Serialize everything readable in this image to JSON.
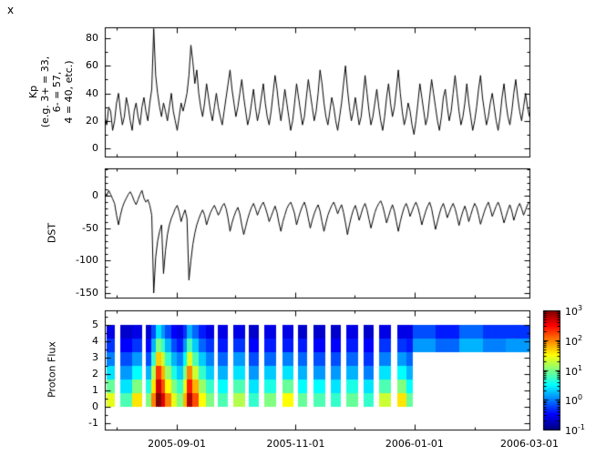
{
  "figure": {
    "corner_label": "x"
  },
  "xaxis": {
    "tick_labels": [
      "2005-09-01",
      "2005-11-01",
      "2006-01-01",
      "2006-03-01"
    ],
    "tick_days": [
      37,
      98,
      159,
      218
    ],
    "minor_tick_days": [
      6,
      67,
      128,
      190
    ],
    "total_days": 218
  },
  "colorbar": {
    "tick_base": "10",
    "tick_exponents": [
      "3",
      "2",
      "1",
      "0",
      "-1"
    ],
    "clim_log": [
      -1,
      3
    ]
  },
  "chart_data": [
    {
      "type": "line",
      "title": "",
      "ylabel_lines": [
        "Kp",
        "(e.g. 3+ = 33,",
        "6- = 57,",
        "4 = 40, etc.)"
      ],
      "yticks": [
        0,
        20,
        40,
        60,
        80
      ],
      "yticks_minor": [
        10,
        30,
        50,
        70
      ],
      "ylim": [
        -6,
        88
      ],
      "values": [
        23,
        17,
        30,
        27,
        13,
        20,
        33,
        40,
        27,
        17,
        23,
        37,
        30,
        20,
        13,
        27,
        33,
        23,
        17,
        30,
        37,
        27,
        20,
        33,
        43,
        87,
        53,
        40,
        30,
        23,
        33,
        27,
        20,
        30,
        40,
        27,
        20,
        13,
        23,
        33,
        27,
        33,
        40,
        53,
        75,
        63,
        47,
        57,
        40,
        30,
        23,
        33,
        47,
        37,
        27,
        20,
        30,
        40,
        30,
        23,
        17,
        27,
        37,
        47,
        57,
        43,
        33,
        23,
        30,
        40,
        50,
        37,
        27,
        17,
        23,
        33,
        43,
        30,
        20,
        27,
        37,
        47,
        33,
        23,
        17,
        27,
        40,
        53,
        43,
        30,
        20,
        30,
        43,
        33,
        23,
        13,
        20,
        33,
        47,
        37,
        27,
        17,
        23,
        37,
        50,
        40,
        30,
        20,
        27,
        40,
        57,
        47,
        33,
        23,
        17,
        27,
        37,
        30,
        20,
        13,
        23,
        33,
        47,
        60,
        43,
        30,
        20,
        27,
        37,
        27,
        17,
        23,
        37,
        53,
        40,
        27,
        17,
        23,
        33,
        43,
        30,
        20,
        13,
        23,
        37,
        47,
        33,
        23,
        30,
        43,
        57,
        40,
        27,
        17,
        23,
        33,
        27,
        17,
        10,
        20,
        33,
        47,
        37,
        27,
        17,
        23,
        37,
        50,
        40,
        30,
        20,
        13,
        23,
        37,
        43,
        30,
        20,
        27,
        40,
        53,
        40,
        27,
        17,
        23,
        33,
        47,
        33,
        23,
        13,
        20,
        30,
        43,
        53,
        37,
        27,
        17,
        23,
        33,
        40,
        30,
        20,
        13,
        23,
        37,
        47,
        33,
        23,
        17,
        27,
        40,
        50,
        37,
        27,
        20,
        30,
        40,
        30,
        23
      ]
    },
    {
      "type": "line",
      "title": "",
      "ylabel": "DST",
      "yticks": [
        0,
        -50,
        -100,
        -150
      ],
      "yticks_minor": [
        40,
        30,
        20,
        10,
        -10,
        -20,
        -30,
        -40,
        -60,
        -70,
        -80,
        -90,
        -110,
        -120,
        -130,
        -140
      ],
      "ylim": [
        -157,
        42
      ],
      "values": [
        5,
        0,
        8,
        2,
        -5,
        -12,
        -30,
        -45,
        -30,
        -18,
        -10,
        -4,
        2,
        6,
        0,
        -8,
        -14,
        -6,
        2,
        8,
        -4,
        -10,
        -6,
        -15,
        -30,
        -150,
        -95,
        -70,
        -55,
        -45,
        -120,
        -85,
        -60,
        -45,
        -35,
        -28,
        -20,
        -15,
        -25,
        -40,
        -30,
        -22,
        -35,
        -130,
        -100,
        -75,
        -58,
        -45,
        -36,
        -28,
        -22,
        -30,
        -45,
        -35,
        -26,
        -20,
        -15,
        -22,
        -30,
        -24,
        -16,
        -12,
        -20,
        -35,
        -55,
        -42,
        -32,
        -24,
        -18,
        -28,
        -45,
        -60,
        -48,
        -36,
        -26,
        -18,
        -12,
        -20,
        -30,
        -22,
        -15,
        -10,
        -18,
        -28,
        -40,
        -32,
        -24,
        -16,
        -26,
        -42,
        -55,
        -40,
        -30,
        -20,
        -14,
        -10,
        -18,
        -28,
        -45,
        -34,
        -24,
        -16,
        -10,
        -20,
        -35,
        -50,
        -38,
        -28,
        -20,
        -14,
        -24,
        -40,
        -55,
        -42,
        -30,
        -22,
        -15,
        -10,
        -18,
        -28,
        -20,
        -14,
        -26,
        -42,
        -60,
        -45,
        -32,
        -22,
        -15,
        -25,
        -38,
        -28,
        -18,
        -12,
        -22,
        -36,
        -50,
        -38,
        -26,
        -18,
        -12,
        -8,
        -16,
        -28,
        -42,
        -32,
        -22,
        -14,
        -24,
        -40,
        -55,
        -40,
        -28,
        -18,
        -12,
        -20,
        -32,
        -24,
        -16,
        -10,
        -18,
        -30,
        -45,
        -34,
        -24,
        -16,
        -10,
        -20,
        -36,
        -52,
        -40,
        -28,
        -18,
        -12,
        -22,
        -34,
        -26,
        -18,
        -12,
        -20,
        -32,
        -46,
        -34,
        -24,
        -16,
        -26,
        -40,
        -30,
        -20,
        -12,
        -18,
        -30,
        -44,
        -34,
        -24,
        -16,
        -10,
        -20,
        -32,
        -24,
        -16,
        -10,
        -18,
        -30,
        -42,
        -32,
        -22,
        -14,
        -24,
        -38,
        -28,
        -18,
        -12,
        -20,
        -30,
        -22,
        -14,
        -10
      ]
    },
    {
      "type": "heatmap",
      "title": "",
      "ylabel": "Proton Flux",
      "yticks": [
        -1,
        0,
        1,
        2,
        3,
        4,
        5
      ],
      "yticks_minor": [
        -0.5,
        0.5,
        1.5,
        2.5,
        3.5,
        4.5,
        5.5
      ],
      "ylim": [
        -1.4,
        5.9
      ],
      "value_scale": "log10_flux",
      "clim": [
        -1,
        3
      ],
      "rows": 6,
      "row_span": [
        0,
        5
      ],
      "segments": [
        {
          "d0": 1,
          "d1": 5,
          "v": [
            1.4,
            0.9,
            0.4,
            0.0,
            -0.3,
            -0.6
          ]
        },
        {
          "d0": 8,
          "d1": 14,
          "v": [
            0.8,
            0.4,
            0.1,
            -0.2,
            -0.5,
            -0.7
          ]
        },
        {
          "d0": 14,
          "d1": 19,
          "v": [
            1.6,
            1.0,
            0.5,
            0.1,
            -0.3,
            -0.6
          ]
        },
        {
          "d0": 21,
          "d1": 24,
          "v": [
            1.0,
            0.6,
            0.2,
            -0.2,
            -0.5,
            -0.7
          ]
        },
        {
          "d0": 24,
          "d1": 26,
          "v": [
            2.0,
            1.6,
            1.2,
            0.7,
            0.2,
            -0.2
          ]
        },
        {
          "d0": 26,
          "d1": 29,
          "v": [
            3.0,
            2.7,
            2.3,
            1.7,
            1.0,
            0.4
          ]
        },
        {
          "d0": 29,
          "d1": 31,
          "v": [
            2.6,
            2.2,
            1.8,
            1.3,
            0.7,
            0.1
          ]
        },
        {
          "d0": 31,
          "d1": 34,
          "v": [
            2.0,
            1.5,
            1.1,
            0.7,
            0.2,
            -0.2
          ]
        },
        {
          "d0": 34,
          "d1": 37,
          "v": [
            1.4,
            1.0,
            0.6,
            0.2,
            -0.2,
            -0.5
          ]
        },
        {
          "d0": 37,
          "d1": 40,
          "v": [
            1.0,
            0.7,
            0.3,
            0.0,
            -0.4,
            -0.6
          ]
        },
        {
          "d0": 40,
          "d1": 42,
          "v": [
            1.8,
            1.4,
            1.0,
            0.5,
            0.1,
            -0.3
          ]
        },
        {
          "d0": 42,
          "d1": 45,
          "v": [
            2.8,
            2.4,
            2.0,
            1.4,
            0.8,
            0.2
          ]
        },
        {
          "d0": 45,
          "d1": 48,
          "v": [
            2.2,
            1.8,
            1.3,
            0.8,
            0.3,
            -0.1
          ]
        },
        {
          "d0": 48,
          "d1": 52,
          "v": [
            1.5,
            1.1,
            0.7,
            0.3,
            -0.1,
            -0.4
          ]
        },
        {
          "d0": 52,
          "d1": 56,
          "v": [
            1.0,
            0.7,
            0.3,
            0.0,
            -0.3,
            -0.6
          ]
        },
        {
          "d0": 58,
          "d1": 63,
          "v": [
            0.8,
            0.5,
            0.2,
            -0.1,
            -0.4,
            -0.6
          ]
        },
        {
          "d0": 66,
          "d1": 72,
          "v": [
            1.2,
            0.8,
            0.4,
            0.1,
            -0.3,
            -0.6
          ]
        },
        {
          "d0": 74,
          "d1": 79,
          "v": [
            0.7,
            0.4,
            0.1,
            -0.2,
            -0.5,
            -0.7
          ]
        },
        {
          "d0": 82,
          "d1": 88,
          "v": [
            1.0,
            0.6,
            0.3,
            -0.1,
            -0.4,
            -0.6
          ]
        },
        {
          "d0": 91,
          "d1": 97,
          "v": [
            1.5,
            0.9,
            0.4,
            0.0,
            -0.4,
            -0.6
          ]
        },
        {
          "d0": 99,
          "d1": 104,
          "v": [
            0.9,
            0.5,
            0.2,
            -0.1,
            -0.4,
            -0.7
          ]
        },
        {
          "d0": 107,
          "d1": 113,
          "v": [
            0.8,
            0.5,
            0.1,
            -0.2,
            -0.5,
            -0.7
          ]
        },
        {
          "d0": 116,
          "d1": 121,
          "v": [
            0.7,
            0.4,
            0.1,
            -0.2,
            -0.5,
            -0.7
          ]
        },
        {
          "d0": 124,
          "d1": 130,
          "v": [
            0.9,
            0.6,
            0.2,
            -0.1,
            -0.4,
            -0.6
          ]
        },
        {
          "d0": 133,
          "d1": 138,
          "v": [
            0.7,
            0.4,
            0.0,
            -0.3,
            -0.5,
            -0.7
          ]
        },
        {
          "d0": 141,
          "d1": 147,
          "v": [
            1.3,
            0.8,
            0.4,
            0.0,
            -0.3,
            -0.6
          ]
        },
        {
          "d0": 150,
          "d1": 155,
          "v": [
            1.6,
            1.0,
            0.5,
            0.1,
            -0.3,
            -0.6
          ]
        },
        {
          "d0": 155,
          "d1": 158,
          "v": [
            0.9,
            0.5,
            0.2,
            -0.1,
            -0.4,
            -0.6
          ]
        },
        {
          "d0": 158,
          "d1": 170,
          "v": [
            null,
            null,
            null,
            null,
            0.1,
            -0.2
          ]
        },
        {
          "d0": 170,
          "d1": 182,
          "v": [
            null,
            null,
            null,
            null,
            -0.1,
            -0.4
          ]
        },
        {
          "d0": 182,
          "d1": 194,
          "v": [
            null,
            null,
            null,
            null,
            0.2,
            -0.1
          ]
        },
        {
          "d0": 194,
          "d1": 206,
          "v": [
            null,
            null,
            null,
            null,
            0.0,
            -0.3
          ]
        },
        {
          "d0": 206,
          "d1": 218,
          "v": [
            null,
            null,
            null,
            null,
            0.1,
            -0.3
          ]
        }
      ]
    }
  ]
}
